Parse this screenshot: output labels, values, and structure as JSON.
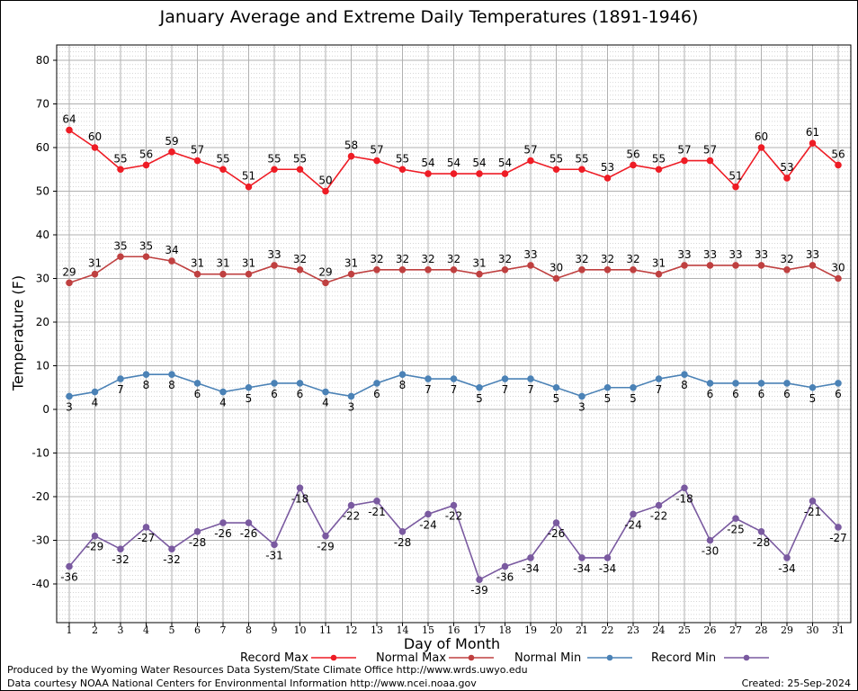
{
  "chart_data": {
    "type": "line",
    "title": "January Average and Extreme Daily Temperatures (1891-1946)",
    "xlabel": "Day of Month",
    "ylabel": "Temperature (F)",
    "ylim": [
      -50,
      85
    ],
    "y_ticks": [
      80,
      70,
      60,
      50,
      40,
      30,
      20,
      10,
      0,
      -10,
      -20,
      -30,
      -40
    ],
    "grid": true,
    "legend_position": "bottom",
    "x": [
      1,
      2,
      3,
      4,
      5,
      6,
      7,
      8,
      9,
      10,
      11,
      12,
      13,
      14,
      15,
      16,
      17,
      18,
      19,
      20,
      21,
      22,
      23,
      24,
      25,
      26,
      27,
      28,
      29,
      30,
      31
    ],
    "series": [
      {
        "name": "Record Max",
        "color": "#ee1c25",
        "label_position": "above",
        "values": [
          64,
          60,
          55,
          56,
          59,
          57,
          55,
          51,
          55,
          55,
          50,
          58,
          57,
          55,
          54,
          54,
          54,
          54,
          57,
          55,
          55,
          53,
          56,
          55,
          57,
          57,
          51,
          60,
          53,
          61,
          56
        ]
      },
      {
        "name": "Normal Max",
        "color": "#bf4040",
        "label_position": "above",
        "values": [
          29,
          31,
          35,
          35,
          34,
          31,
          31,
          31,
          33,
          32,
          29,
          31,
          32,
          32,
          32,
          32,
          31,
          32,
          33,
          30,
          32,
          32,
          32,
          31,
          33,
          33,
          33,
          33,
          32,
          33,
          30
        ]
      },
      {
        "name": "Normal Min",
        "color": "#4b82b6",
        "label_position": "below",
        "values": [
          3,
          4,
          7,
          8,
          8,
          6,
          4,
          5,
          6,
          6,
          4,
          3,
          6,
          8,
          7,
          7,
          5,
          7,
          7,
          5,
          3,
          5,
          5,
          7,
          8,
          6,
          6,
          6,
          6,
          5,
          6
        ]
      },
      {
        "name": "Record Min",
        "color": "#7a5aa0",
        "label_position": "below",
        "values": [
          -36,
          -29,
          -32,
          -27,
          -32,
          -28,
          -26,
          -26,
          -31,
          -18,
          -29,
          -22,
          -21,
          -28,
          -24,
          -22,
          -39,
          -36,
          -34,
          -26,
          -34,
          -34,
          -24,
          -22,
          -18,
          -30,
          -25,
          -28,
          -34,
          -21,
          -27
        ]
      }
    ]
  },
  "footer": {
    "line1": "Produced by the Wyoming Water Resources Data System/State Climate Office http://www.wrds.uwyo.edu",
    "line2": "Data courtesy NOAA National Centers for Environmental Information http://www.ncei.noaa.gov",
    "created": "Created:  25-Sep-2024"
  }
}
